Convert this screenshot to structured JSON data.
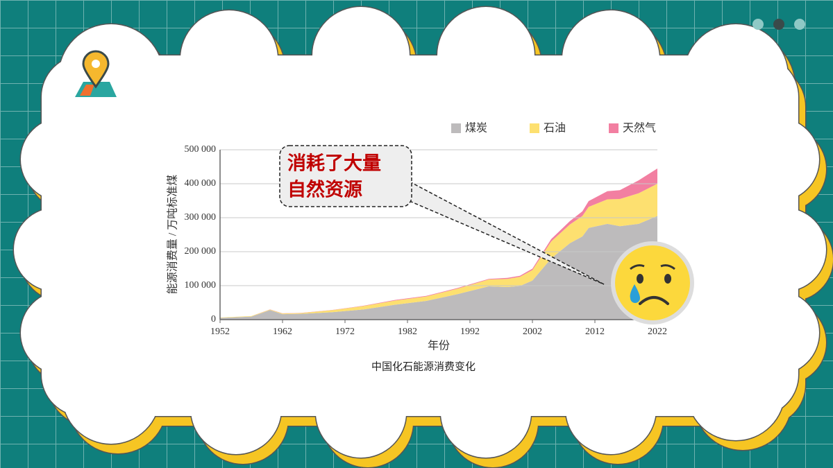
{
  "chart_data": {
    "type": "stacked-area",
    "title": "中国化石能源消费变化",
    "x_label": "年份",
    "y_label": "能源消费量 / 万吨标准煤",
    "callout": [
      "消耗了大量",
      "自然资源"
    ],
    "x": [
      1952,
      1957,
      1960,
      1962,
      1965,
      1970,
      1975,
      1980,
      1985,
      1990,
      1995,
      1998,
      2000,
      2002,
      2005,
      2008,
      2010,
      2011,
      2014,
      2016,
      2019,
      2022
    ],
    "series": [
      {
        "name": "煤炭",
        "color": "#bdbbbc",
        "values": [
          5000,
          9000,
          28000,
          16000,
          17000,
          22000,
          30000,
          44000,
          55000,
          75000,
          98000,
          96000,
          99000,
          115000,
          180000,
          225000,
          245000,
          270000,
          282000,
          275000,
          282000,
          305000
        ]
      },
      {
        "name": "石油",
        "color": "#fde070",
        "values": [
          1000,
          1500,
          1500,
          2000,
          2500,
          6000,
          10000,
          12000,
          13000,
          16000,
          20000,
          24000,
          27000,
          31000,
          50000,
          55000,
          60000,
          62000,
          72000,
          80000,
          90000,
          95000
        ]
      },
      {
        "name": "天然气",
        "color": "#f27fa1",
        "values": [
          0,
          0,
          500,
          500,
          500,
          500,
          1000,
          2000,
          2000,
          2000,
          2000,
          3000,
          3000,
          4000,
          7000,
          10000,
          14000,
          17000,
          24000,
          26000,
          38000,
          45000
        ]
      }
    ],
    "xlim": [
      1952,
      2022
    ],
    "xticks": [
      1952,
      1962,
      1972,
      1982,
      1992,
      2002,
      2012,
      2022
    ],
    "ylim": [
      0,
      500000
    ],
    "yticks": [
      0,
      {
        "value": 100000,
        "label": "100 000"
      },
      {
        "value": 200000,
        "label": "200 000"
      },
      {
        "value": 300000,
        "label": "300 000"
      },
      {
        "value": 400000,
        "label": "400 000"
      },
      {
        "value": 500000,
        "label": "500 000"
      }
    ],
    "grid": true,
    "legend": "top-right"
  }
}
